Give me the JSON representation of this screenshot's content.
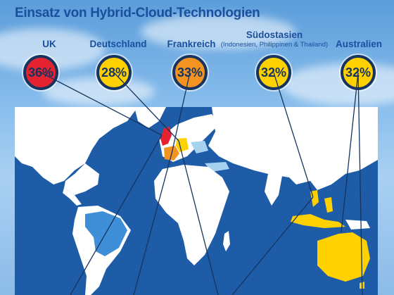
{
  "title": "Einsatz von Hybrid-Cloud-Technologien",
  "countries": [
    {
      "label": "UK",
      "sub": "",
      "value": "36%",
      "color": "#e52230"
    },
    {
      "label": "Deutschland",
      "sub": "",
      "value": "28%",
      "color": "#ffd100"
    },
    {
      "label": "Frankreich",
      "sub": "",
      "value": "33%",
      "color": "#f39322"
    },
    {
      "label": "Südostasien",
      "sub": "(Indonesien, Philippinen & Thailand)",
      "value": "32%",
      "color": "#ffd100"
    },
    {
      "label": "Australien",
      "sub": "",
      "value": "32%",
      "color": "#ffd100"
    }
  ],
  "colors": {
    "title": "#1a4f9e",
    "ring": "#16345f",
    "map_water": "#1f5ca8",
    "map_land": "#ffffff",
    "highlight_brazil": "#3e8fd8",
    "highlight_light": "#a6d2f0"
  }
}
